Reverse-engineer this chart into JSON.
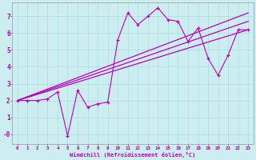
{
  "bg_color": "#cceef0",
  "line_color": "#bb00bb",
  "grid_color": "#aadddd",
  "xlabel": "Windchill (Refroidissement éolien,°C)",
  "xlabel_color": "#bb00bb",
  "tick_color": "#aa00aa",
  "xlim": [
    -0.5,
    23.5
  ],
  "ylim": [
    -0.6,
    7.8
  ],
  "ytick_vals": [
    0,
    1,
    2,
    3,
    4,
    5,
    6,
    7
  ],
  "ytick_labels": [
    "-0",
    "1",
    "2",
    "3",
    "4",
    "5",
    "6",
    "7"
  ],
  "xtick_vals": [
    0,
    1,
    2,
    3,
    4,
    5,
    6,
    7,
    8,
    9,
    10,
    11,
    12,
    13,
    14,
    15,
    16,
    17,
    18,
    19,
    20,
    21,
    22,
    23
  ],
  "series1_x": [
    0,
    1,
    2,
    3,
    4,
    5,
    6,
    7,
    8,
    9,
    10,
    11,
    12,
    13,
    14,
    15,
    16,
    17,
    18,
    19,
    20,
    21,
    22,
    23
  ],
  "series1_y": [
    2.0,
    2.0,
    2.0,
    2.1,
    2.5,
    -0.1,
    2.6,
    1.6,
    1.8,
    1.9,
    5.6,
    7.2,
    6.5,
    7.0,
    7.5,
    6.8,
    6.7,
    5.5,
    6.3,
    4.5,
    3.5,
    4.7,
    6.2,
    6.2
  ],
  "trend1_x": [
    0,
    23
  ],
  "trend1_y": [
    2.0,
    6.2
  ],
  "trend2_x": [
    0,
    23
  ],
  "trend2_y": [
    2.0,
    6.7
  ],
  "trend3_x": [
    0,
    23
  ],
  "trend3_y": [
    2.0,
    7.2
  ]
}
